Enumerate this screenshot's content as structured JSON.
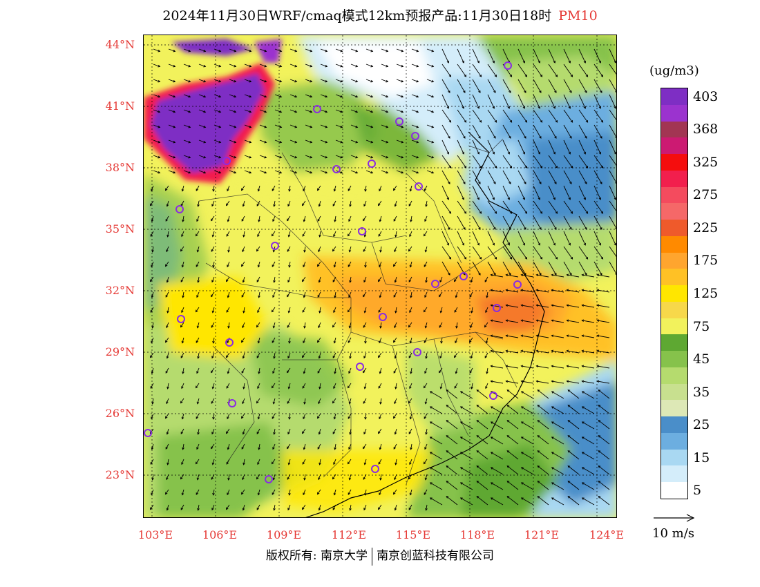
{
  "title": "2024年11月30日WRF/cmaq模式12km预报产品:11月30日18时",
  "pollutant": "PM10",
  "unit": "(ug/m3)",
  "latitudes": [
    "44°N",
    "41°N",
    "38°N",
    "35°N",
    "32°N",
    "29°N",
    "26°N",
    "23°N"
  ],
  "longitudes": [
    "103°E",
    "106°E",
    "109°E",
    "112°E",
    "115°E",
    "118°E",
    "121°E",
    "124°E"
  ],
  "colorbar": [
    {
      "value": "403",
      "color": "#7e2ec4"
    },
    {
      "value": "",
      "color": "#9b33cf"
    },
    {
      "value": "368",
      "color": "#a23553"
    },
    {
      "value": "",
      "color": "#cc1a72"
    },
    {
      "value": "325",
      "color": "#f50d0d"
    },
    {
      "value": "",
      "color": "#f21f4d"
    },
    {
      "value": "275",
      "color": "#f44b5e"
    },
    {
      "value": "",
      "color": "#f56868"
    },
    {
      "value": "225",
      "color": "#ef5a2b"
    },
    {
      "value": "",
      "color": "#ff8a00"
    },
    {
      "value": "175",
      "color": "#ffa52e"
    },
    {
      "value": "",
      "color": "#ffc125"
    },
    {
      "value": "125",
      "color": "#ffe600"
    },
    {
      "value": "",
      "color": "#f7d84a"
    },
    {
      "value": "75",
      "color": "#f2f25c"
    },
    {
      "value": "",
      "color": "#5ea832"
    },
    {
      "value": "45",
      "color": "#86c24b"
    },
    {
      "value": "",
      "color": "#b5db6e"
    },
    {
      "value": "35",
      "color": "#c8e08f"
    },
    {
      "value": "",
      "color": "#dde8b6"
    },
    {
      "value": "25",
      "color": "#4a8ec9"
    },
    {
      "value": "",
      "color": "#6caee0"
    },
    {
      "value": "15",
      "color": "#a9d8f2"
    },
    {
      "value": "",
      "color": "#d4edfa"
    },
    {
      "value": "5",
      "color": "#ffffff"
    }
  ],
  "wind_reference": "10 m/s",
  "copyright_left": "版权所有: 南京大学",
  "copyright_right": "南京创蓝科技有限公司",
  "colors": {
    "label_red": "#e53935",
    "marker": "#8a2be2"
  }
}
